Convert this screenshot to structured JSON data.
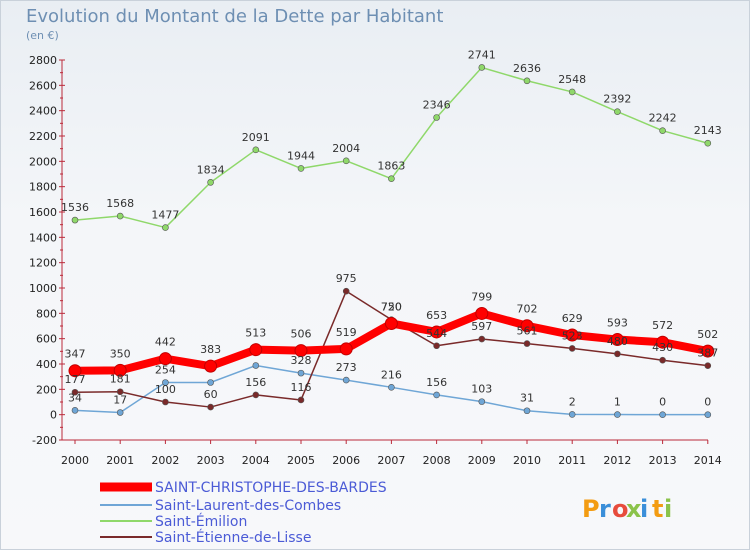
{
  "chart_data": {
    "type": "line",
    "title": "Evolution du Montant de la Dette par Habitant",
    "subtitle": "(en €)",
    "xlabel": "",
    "ylabel": "",
    "categories": [
      "2000",
      "2001",
      "2002",
      "2003",
      "2004",
      "2005",
      "2006",
      "2007",
      "2008",
      "2009",
      "2010",
      "2011",
      "2012",
      "2013",
      "2014"
    ],
    "ylim": [
      -200,
      2800
    ],
    "yticks": [
      -200,
      0,
      200,
      400,
      600,
      800,
      1000,
      1200,
      1400,
      1600,
      1800,
      2000,
      2200,
      2400,
      2600,
      2800
    ],
    "grid": false,
    "legend_position": "bottom-left",
    "series": [
      {
        "name": "SAINT-CHRISTOPHE-DES-BARDES",
        "color": "#ff0000",
        "values": [
          347,
          350,
          442,
          383,
          513,
          506,
          519,
          720,
          653,
          799,
          702,
          629,
          593,
          572,
          502
        ]
      },
      {
        "name": "Saint-Laurent-des-Combes",
        "color": "#6fa6d6",
        "values": [
          34,
          17,
          254,
          254,
          388,
          328,
          273,
          216,
          156,
          103,
          31,
          2,
          1,
          0,
          0
        ]
      },
      {
        "name": "Saint-Émilion",
        "color": "#8fd86a",
        "values": [
          1536,
          1568,
          1477,
          1834,
          2091,
          1944,
          2004,
          1863,
          2346,
          2741,
          2636,
          2548,
          2392,
          2242,
          2143
        ]
      },
      {
        "name": "Saint-Étienne-de-Lisse",
        "color": "#7a2a2a",
        "values": [
          177,
          181,
          100,
          60,
          156,
          116,
          975,
          750,
          544,
          597,
          561,
          523,
          480,
          430,
          387
        ]
      }
    ],
    "data_labels": [
      [
        "347",
        "350",
        "442",
        "383",
        "513",
        "506",
        "519",
        "720",
        "653",
        "799",
        "702",
        "629",
        "593",
        "572",
        "502"
      ],
      [
        "34",
        "17",
        "254",
        "",
        "",
        "328",
        "273",
        "216",
        "156",
        "103",
        "31",
        "2",
        "1",
        "0",
        "0"
      ],
      [
        "1536",
        "1568",
        "1477",
        "1834",
        "2091",
        "1944",
        "2004",
        "1863",
        "2346",
        "2741",
        "2636",
        "2548",
        "2392",
        "2242",
        "2143"
      ],
      [
        "177",
        "181",
        "100",
        "60",
        "156",
        "116",
        "975",
        "750",
        "544",
        "597",
        "561",
        "523",
        "480",
        "430",
        "387"
      ]
    ]
  },
  "logo": {
    "text": "Proxiti"
  }
}
